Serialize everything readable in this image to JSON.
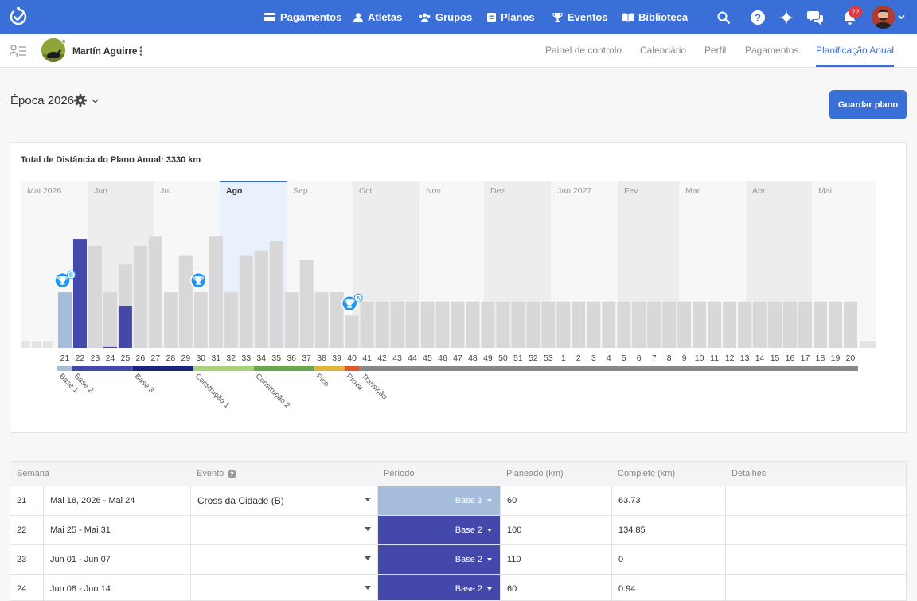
{
  "nav": {
    "items": [
      {
        "label": "Pagamentos",
        "icon": "card-icon"
      },
      {
        "label": "Atletas",
        "icon": "person-icon"
      },
      {
        "label": "Grupos",
        "icon": "group-icon"
      },
      {
        "label": "Planos",
        "icon": "clipboard-icon"
      },
      {
        "label": "Eventos",
        "icon": "trophy-icon"
      },
      {
        "label": "Biblioteca",
        "icon": "book-icon"
      }
    ],
    "notification_count": "22"
  },
  "athlete": {
    "name": "Martín Aguirre"
  },
  "tabs": [
    "Painel de controlo",
    "Calendário",
    "Perfil",
    "Pagamentos",
    "Planificação Anual"
  ],
  "active_tab": "Planificação Anual",
  "season": {
    "title": "Época 2026"
  },
  "save_button": "Guardar plano",
  "chart_data": {
    "type": "bar",
    "title": "Total de Distância do Plano Anual: 3330 km",
    "months": [
      "Mai 2026",
      "Jun",
      "Jul",
      "Ago",
      "Sep",
      "Oct",
      "Nov",
      "Dez",
      "Jan 2027",
      "Fev",
      "Mar",
      "Abr",
      "Mai"
    ],
    "highlighted_month": "Ago",
    "weeks": [
      "21",
      "22",
      "23",
      "24",
      "25",
      "26",
      "27",
      "28",
      "29",
      "30",
      "31",
      "32",
      "33",
      "34",
      "35",
      "36",
      "37",
      "38",
      "39",
      "40",
      "41",
      "42",
      "43",
      "44",
      "45",
      "46",
      "47",
      "48",
      "49",
      "50",
      "51",
      "52",
      "53",
      "1",
      "2",
      "3",
      "4",
      "5",
      "6",
      "7",
      "8",
      "9",
      "10",
      "11",
      "12",
      "13",
      "14",
      "15",
      "16",
      "17",
      "18",
      "19",
      "20"
    ],
    "planned_km": [
      60,
      100,
      110,
      60,
      90,
      110,
      120,
      60,
      100,
      60,
      120,
      60,
      100,
      105,
      115,
      60,
      95,
      60,
      60,
      35,
      50,
      50,
      50,
      50,
      50,
      50,
      50,
      50,
      50,
      50,
      50,
      50,
      50,
      50,
      50,
      50,
      50,
      50,
      50,
      50,
      50,
      50,
      50,
      50,
      50,
      50,
      50,
      50,
      50,
      50,
      50,
      50,
      50
    ],
    "completed_km": [
      63.73,
      134.85,
      0,
      0.94,
      45,
      0,
      0,
      0,
      0,
      0,
      0,
      0,
      0,
      0,
      0,
      0,
      0,
      0,
      0,
      0,
      0,
      0,
      0,
      0,
      0,
      0,
      0,
      0,
      0,
      0,
      0,
      0,
      0,
      0,
      0,
      0,
      0,
      0,
      0,
      0,
      0,
      0,
      0,
      0,
      0,
      0,
      0,
      0,
      0,
      0,
      0,
      0,
      0
    ],
    "ylim": [
      0,
      140
    ],
    "events": [
      {
        "week": "21",
        "badge": "B"
      },
      {
        "week": "30",
        "badge": ""
      },
      {
        "week": "40",
        "badge": "A"
      }
    ],
    "periods": [
      {
        "label": "Base 1",
        "start": 0,
        "weeks": 1,
        "color": "#a6bcdb"
      },
      {
        "label": "Base 2",
        "start": 1,
        "weeks": 4,
        "color": "#4448aa"
      },
      {
        "label": "Base 3",
        "start": 5,
        "weeks": 4,
        "color": "#1c237a"
      },
      {
        "label": "Construção 1",
        "start": 9,
        "weeks": 4,
        "color": "#a8d27a"
      },
      {
        "label": "Construção 2",
        "start": 13,
        "weeks": 4,
        "color": "#6aa84f"
      },
      {
        "label": "Pico",
        "start": 17,
        "weeks": 2,
        "color": "#e0b43a"
      },
      {
        "label": "Prova",
        "start": 19,
        "weeks": 1,
        "color": "#e05a2c"
      },
      {
        "label": "Transição",
        "start": 20,
        "weeks": 33,
        "color": "#888888"
      }
    ],
    "colors": {
      "planned": "#d8d8d8",
      "pad": "#e4e4e4",
      "highlight_bg": "#e8f1fc",
      "highlight_border": "#3b6fd8",
      "event": "#2196f3"
    }
  },
  "table": {
    "headers": [
      "Semana",
      "Evento",
      "Período",
      "Planeado (km)",
      "Completo (km)",
      "Detalhes"
    ],
    "rows": [
      {
        "week": "21",
        "dates": "Mai 18, 2026 - Mai 24",
        "event": "Cross da Cidade (B)",
        "period": "Base 1",
        "period_color": "#a6bcdb",
        "planned": "60",
        "completed": "63.73",
        "details": ""
      },
      {
        "week": "22",
        "dates": "Mai 25 - Mai 31",
        "event": "",
        "period": "Base 2",
        "period_color": "#4448aa",
        "planned": "100",
        "completed": "134.85",
        "details": ""
      },
      {
        "week": "23",
        "dates": "Jun 01 - Jun 07",
        "event": "",
        "period": "Base 2",
        "period_color": "#4448aa",
        "planned": "110",
        "completed": "0",
        "details": ""
      },
      {
        "week": "24",
        "dates": "Jun 08 - Jun 14",
        "event": "",
        "period": "Base 2",
        "period_color": "#4448aa",
        "planned": "60",
        "completed": "0.94",
        "details": ""
      }
    ]
  }
}
